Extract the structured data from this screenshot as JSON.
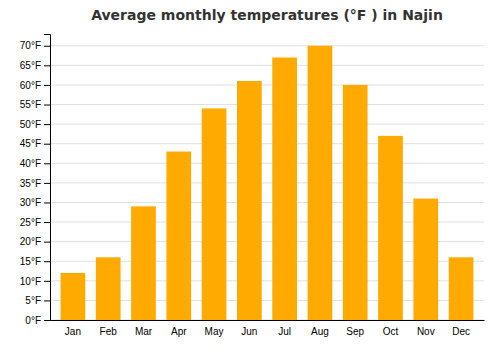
{
  "chart_data": {
    "type": "bar",
    "title": "Average monthly temperatures (°F ) in Najin",
    "categories": [
      "Jan",
      "Feb",
      "Mar",
      "Apr",
      "May",
      "Jun",
      "Jul",
      "Aug",
      "Sep",
      "Oct",
      "Nov",
      "Dec"
    ],
    "values": [
      12,
      16,
      29,
      43,
      54,
      61,
      67,
      70,
      60,
      47,
      31,
      16
    ],
    "color": "#FFAA00",
    "ylim": [
      0,
      73
    ],
    "yticks": [
      {
        "value": 0,
        "label": "0°F"
      },
      {
        "value": 5,
        "label": "5°F"
      },
      {
        "value": 10,
        "label": "10°F"
      },
      {
        "value": 15,
        "label": "15°F"
      },
      {
        "value": 20,
        "label": "20°F"
      },
      {
        "value": 25,
        "label": "25°F"
      },
      {
        "value": 30,
        "label": "30°F"
      },
      {
        "value": 35,
        "label": "35°F"
      },
      {
        "value": 40,
        "label": "40°F"
      },
      {
        "value": 45,
        "label": "45°F"
      },
      {
        "value": 50,
        "label": "50°F"
      },
      {
        "value": 55,
        "label": "55°F"
      },
      {
        "value": 60,
        "label": "60°F"
      },
      {
        "value": 65,
        "label": "65°F"
      },
      {
        "value": 70,
        "label": "70°F"
      }
    ],
    "grid": true
  }
}
